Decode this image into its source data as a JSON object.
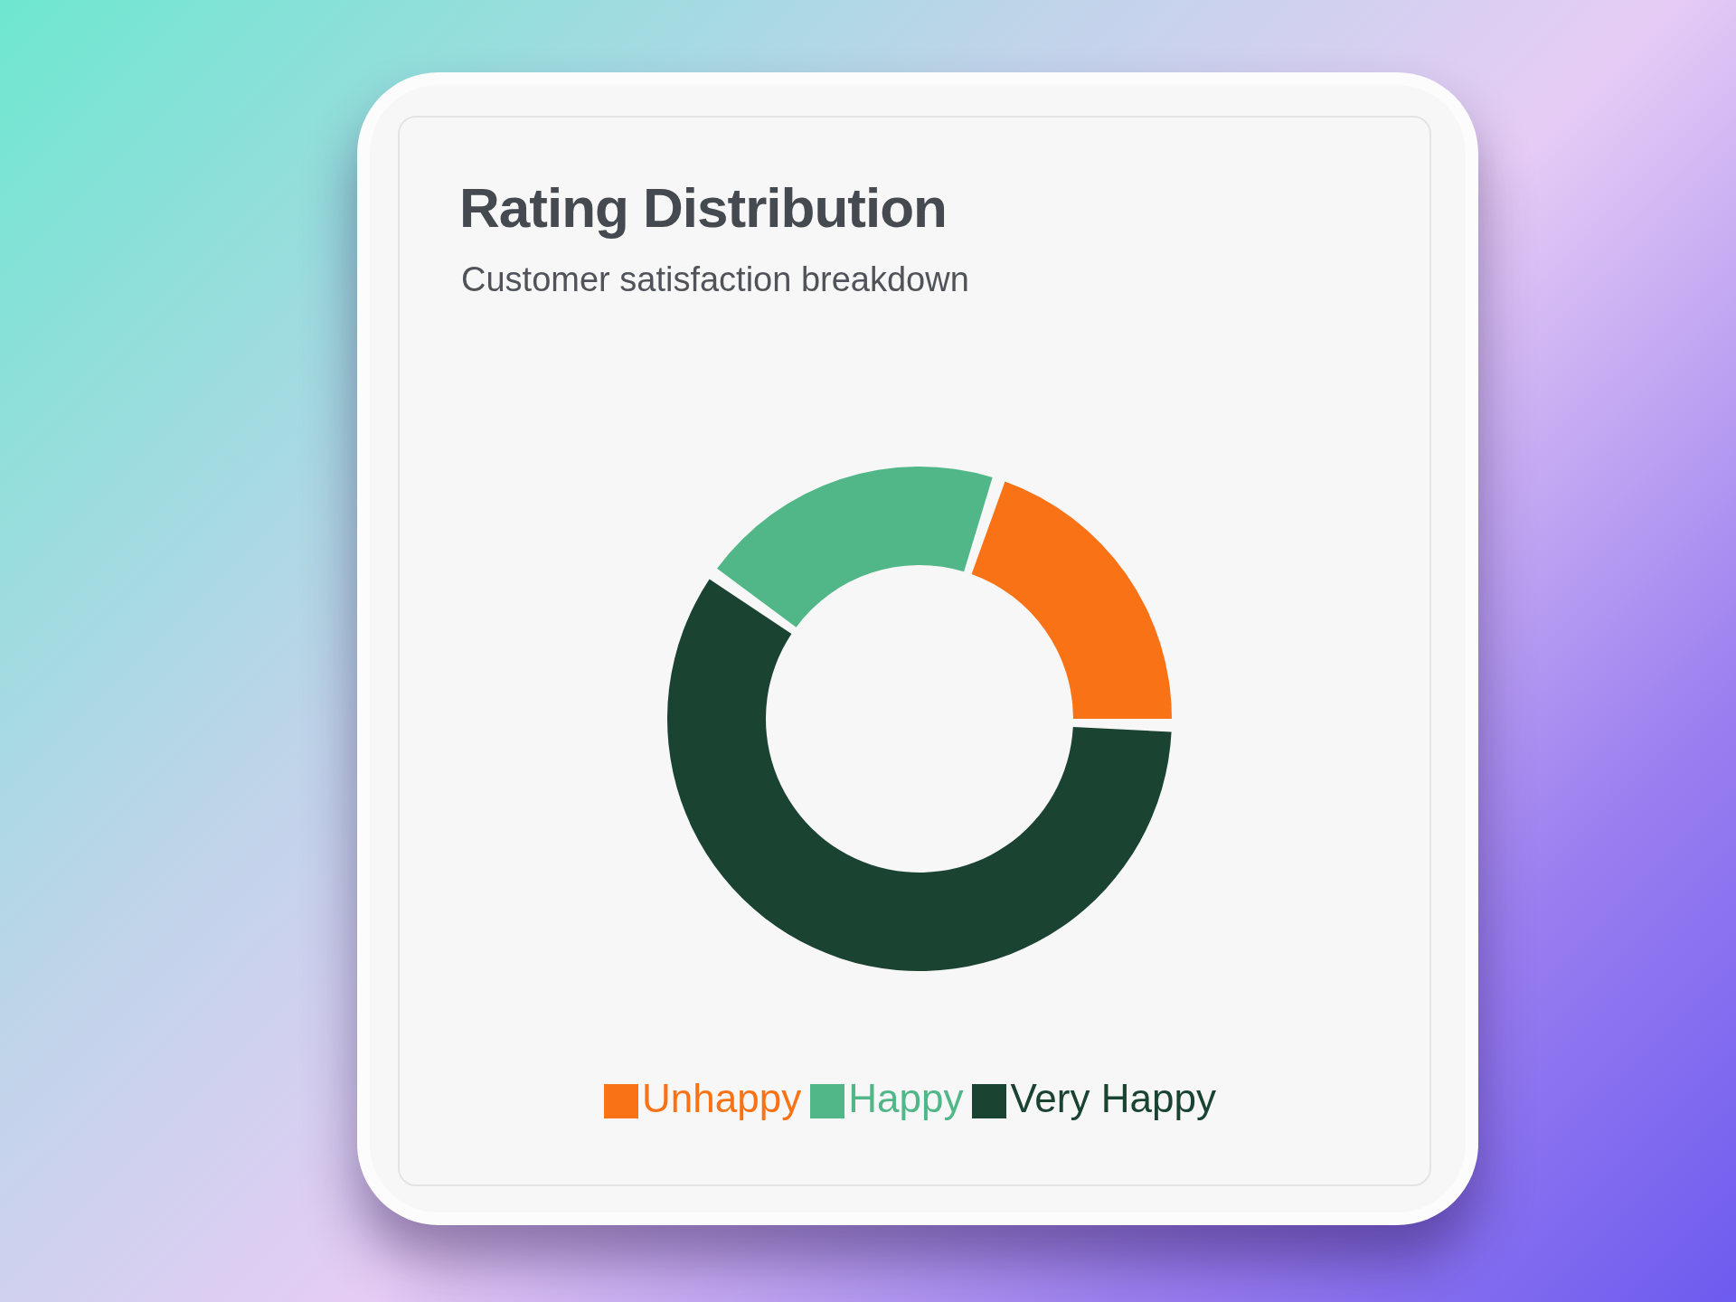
{
  "chart_data": {
    "type": "donut",
    "title": "Rating Distribution",
    "subtitle": "Customer satisfaction breakdown",
    "categories": [
      "Unhappy",
      "Happy",
      "Very Happy"
    ],
    "values": [
      20,
      20,
      60
    ],
    "colors": [
      "#f97316",
      "#52b788",
      "#1b4332"
    ],
    "legend": "bottom"
  }
}
